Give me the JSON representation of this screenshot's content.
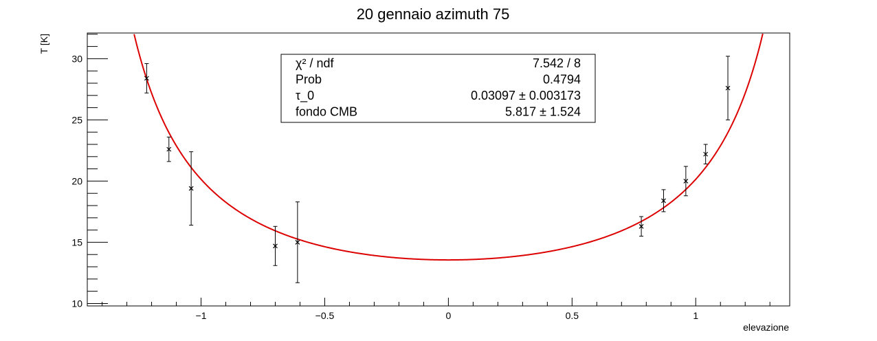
{
  "chart_data": {
    "type": "scatter",
    "title": "20 gennaio azimuth 75",
    "xlabel": "elevazione",
    "ylabel": "T [K]",
    "xlim": [
      -1.46,
      1.38
    ],
    "ylim": [
      9.8,
      32.1
    ],
    "x_ticks": [
      -1,
      -0.5,
      0,
      0.5,
      1
    ],
    "x_tick_labels": [
      "−1",
      "−0.5",
      "0",
      "0.5",
      "1"
    ],
    "y_ticks": [
      10,
      15,
      20,
      25,
      30
    ],
    "y_tick_labels": [
      "10",
      "15",
      "20",
      "25",
      "30"
    ],
    "grid": false,
    "legend": "none",
    "points": [
      {
        "x": -1.22,
        "y": 28.4,
        "yerr": 1.2
      },
      {
        "x": -1.13,
        "y": 22.6,
        "yerr": 1.0
      },
      {
        "x": -1.04,
        "y": 19.4,
        "yerr": 3.0
      },
      {
        "x": -0.7,
        "y": 14.7,
        "yerr": 1.6
      },
      {
        "x": -0.61,
        "y": 15.0,
        "yerr": 3.3
      },
      {
        "x": 0.78,
        "y": 16.3,
        "yerr": 0.8
      },
      {
        "x": 0.87,
        "y": 18.4,
        "yerr": 0.9
      },
      {
        "x": 0.96,
        "y": 20.0,
        "yerr": 1.2
      },
      {
        "x": 1.04,
        "y": 22.2,
        "yerr": 0.8
      },
      {
        "x": 1.13,
        "y": 27.6,
        "yerr": 2.6
      }
    ],
    "fit": {
      "tau_0": 0.03097,
      "fondo_CMB": 5.817,
      "color": "#dd0000"
    },
    "stats_box": [
      {
        "label": "χ² / ndf",
        "value": "7.542 / 8"
      },
      {
        "label": "Prob",
        "value": "0.4794"
      },
      {
        "label": "τ_0",
        "value": "0.03097 ± 0.003173"
      },
      {
        "label": "fondo CMB",
        "value": "5.817 ± 1.524"
      }
    ],
    "colors": {
      "points": "#000000",
      "fit_line": "#dd0000",
      "axes": "#000000"
    }
  }
}
